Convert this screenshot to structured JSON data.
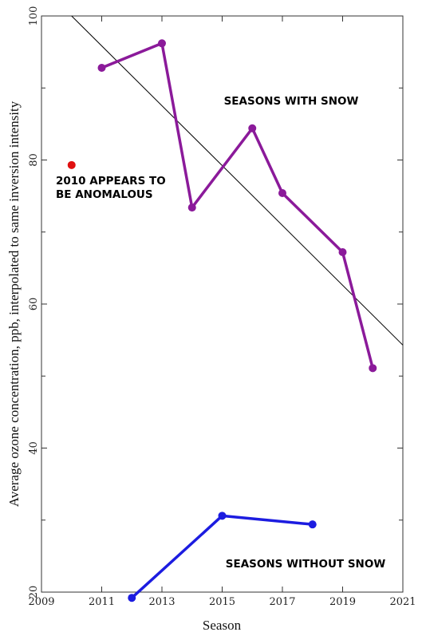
{
  "chart_data": {
    "type": "line",
    "xlabel": "Season",
    "ylabel": "Average ozone concentration, ppb, interpolated to same inversion intensity",
    "xlim": [
      2009,
      2021
    ],
    "ylim": [
      20,
      100
    ],
    "x_ticks": [
      2009,
      2011,
      2013,
      2015,
      2017,
      2019,
      2021
    ],
    "y_tick_labels": [
      20,
      40,
      60,
      80,
      100
    ],
    "y_minor_ticks": [
      30,
      50,
      70,
      90
    ],
    "grid": false,
    "series": [
      {
        "name": "SEASONS WITH SNOW",
        "color": "#8b1a9a",
        "x": [
          2011,
          2013,
          2014,
          2016,
          2017,
          2019,
          2020
        ],
        "y": [
          92.8,
          96.2,
          73.4,
          84.4,
          75.4,
          67.2,
          51.1
        ]
      },
      {
        "name": "SEASONS WITHOUT SNOW",
        "color": "#1c1ce0",
        "x": [
          2012,
          2015,
          2018
        ],
        "y": [
          19.2,
          30.6,
          29.4
        ]
      }
    ],
    "trend_line": {
      "color": "#000000",
      "x": [
        2010,
        2021
      ],
      "y": [
        100,
        54.3
      ]
    },
    "outlier_point": {
      "color": "#e01010",
      "x": 2010,
      "y": 79.3
    },
    "annotations": {
      "with_snow": "SEASONS WITH SNOW",
      "without_snow": "SEASONS WITHOUT SNOW",
      "anomaly_line1": "2010 APPEARS TO",
      "anomaly_line2": "BE ANOMALOUS"
    }
  }
}
